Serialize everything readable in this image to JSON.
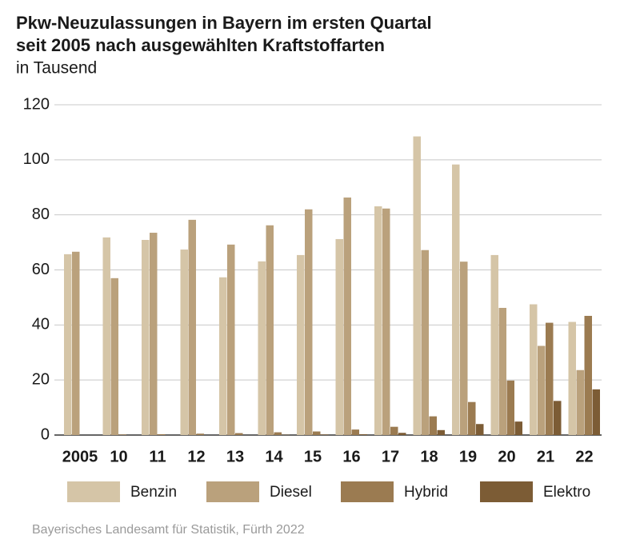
{
  "chart_data": {
    "type": "bar",
    "title": [
      "Pkw-Neuzulassungen in Bayern im ersten Quartal",
      "seit 2005 nach ausgewählten Kraftstoffarten"
    ],
    "subtitle": "in Tausend",
    "source": "Bayerisches Landesamt für Statistik, Fürth 2022",
    "categories": [
      "2005",
      "10",
      "11",
      "12",
      "13",
      "14",
      "15",
      "16",
      "17",
      "18",
      "19",
      "20",
      "21",
      "22"
    ],
    "series": [
      {
        "name": "Benzin",
        "color": "#d5c5a7",
        "values": [
          65.7,
          71.8,
          70.9,
          67.4,
          57.3,
          63.1,
          65.4,
          71.2,
          83.1,
          108.5,
          98.3,
          65.4,
          47.5,
          41.1
        ]
      },
      {
        "name": "Diesel",
        "color": "#baa17c",
        "values": [
          66.6,
          57.0,
          73.5,
          78.2,
          69.2,
          76.2,
          82.0,
          86.3,
          82.3,
          67.2,
          63.0,
          46.2,
          32.4,
          23.6
        ]
      },
      {
        "name": "Hybrid",
        "color": "#9b7b51",
        "values": [
          0.0,
          0.2,
          0.3,
          0.5,
          0.7,
          1.0,
          1.3,
          2.0,
          3.0,
          6.8,
          12.0,
          19.8,
          40.8,
          43.3
        ]
      },
      {
        "name": "Elektro",
        "color": "#7c5c35",
        "values": [
          0.0,
          0.0,
          0.0,
          0.0,
          0.0,
          0.1,
          0.2,
          0.3,
          0.8,
          1.8,
          4.0,
          4.9,
          12.4,
          16.6
        ]
      }
    ],
    "ylim": [
      0,
      120
    ],
    "yticks": [
      0,
      20,
      40,
      60,
      80,
      100,
      120
    ],
    "grid": true
  }
}
